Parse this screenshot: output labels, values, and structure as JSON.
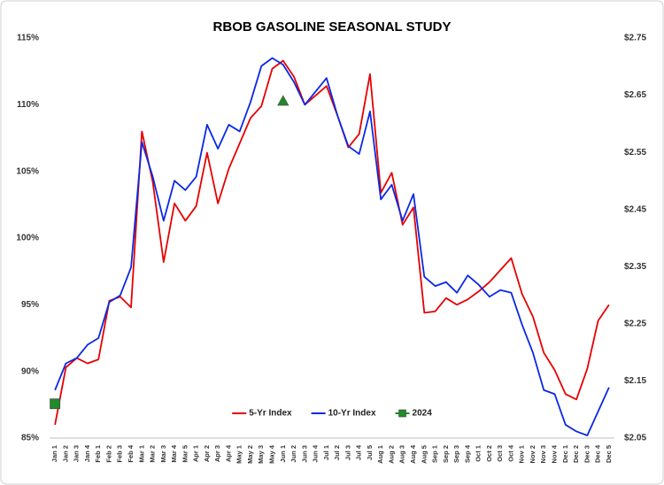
{
  "chart_data": {
    "type": "line",
    "title": "RBOB GASOLINE SEASONAL STUDY",
    "categories": [
      "Jan 1",
      "Jan 2",
      "Jan 3",
      "Jan 4",
      "Feb 1",
      "Feb 2",
      "Feb 3",
      "Feb 4",
      "Mar 1",
      "Mar 2",
      "Mar 3",
      "Mar 4",
      "Mar 5",
      "Apr 1",
      "Apr 2",
      "Apr 3",
      "Apr 4",
      "May 1",
      "May 2",
      "May 3",
      "May 4",
      "Jun 1",
      "Jun 2",
      "Jun 3",
      "Jun 4",
      "Jul 1",
      "Jul 2",
      "Jul 3",
      "Jul 4",
      "Jul 5",
      "Aug 1",
      "Aug 2",
      "Aug 3",
      "Aug 4",
      "Aug 5",
      "Sep 1",
      "Sep 2",
      "Sep 3",
      "Sep 4",
      "Oct 1",
      "Oct 2",
      "Oct 3",
      "Oct 4",
      "Nov 1",
      "Nov 2",
      "Nov 3",
      "Nov 4",
      "Dec 1",
      "Dec 2",
      "Dec 3",
      "Dec 4",
      "Dec 5"
    ],
    "series": [
      {
        "name": "5-Yr Index",
        "color": "#e60000",
        "values": [
          86.0,
          90.3,
          91.0,
          90.6,
          90.9,
          95.3,
          95.6,
          94.8,
          108.0,
          104.2,
          98.2,
          102.6,
          101.3,
          102.4,
          106.4,
          102.6,
          105.2,
          107.1,
          109.0,
          109.9,
          112.7,
          113.3,
          112.1,
          110.0,
          110.7,
          111.4,
          109.2,
          106.8,
          107.8,
          112.3,
          103.4,
          104.9,
          101.0,
          102.3,
          94.4,
          94.5,
          95.5,
          95.0,
          95.4,
          96.0,
          96.7,
          97.6,
          98.5,
          95.8,
          94.1,
          91.4,
          90.1,
          88.3,
          87.9,
          90.2,
          93.8,
          95.0
        ]
      },
      {
        "name": "10-Yr Index",
        "color": "#0a28e6",
        "values": [
          88.6,
          90.6,
          91.0,
          92.0,
          92.5,
          95.2,
          95.7,
          97.8,
          107.2,
          104.6,
          101.3,
          104.3,
          103.6,
          104.6,
          108.5,
          106.7,
          108.5,
          108.0,
          110.2,
          112.9,
          113.5,
          113.0,
          111.7,
          110.0,
          111.0,
          112.0,
          109.2,
          106.9,
          106.3,
          109.5,
          102.9,
          104.0,
          101.3,
          103.3,
          97.1,
          96.4,
          96.7,
          95.9,
          97.2,
          96.5,
          95.6,
          96.1,
          95.9,
          93.5,
          91.4,
          88.6,
          88.3,
          86.0,
          85.5,
          85.2,
          87.0,
          88.8
        ]
      },
      {
        "name": "2024",
        "color": "#1e8c28",
        "axis": "y2",
        "values": [
          2.11,
          null,
          null,
          null,
          null,
          null,
          null,
          null,
          null,
          null,
          null,
          null,
          null,
          null,
          null,
          null,
          null,
          null,
          null,
          null,
          null,
          2.64,
          null,
          null,
          null,
          null,
          null,
          null,
          null,
          null,
          null,
          null,
          null,
          null,
          null,
          null,
          null,
          null,
          null,
          null,
          null,
          null,
          null,
          null,
          null,
          null,
          null,
          null,
          null,
          null,
          null,
          null
        ],
        "markers": [
          "square",
          null,
          null,
          null,
          null,
          null,
          null,
          null,
          null,
          null,
          null,
          null,
          null,
          null,
          null,
          null,
          null,
          null,
          null,
          null,
          null,
          "triangle",
          null,
          null,
          null,
          null,
          null,
          null,
          null,
          null,
          null,
          null,
          null,
          null,
          null,
          null,
          null,
          null,
          null,
          null,
          null,
          null,
          null,
          null,
          null,
          null,
          null,
          null,
          null,
          null,
          null,
          null
        ]
      }
    ],
    "ylim": [
      85,
      115
    ],
    "yticks": [
      {
        "value": 85,
        "label": "85%"
      },
      {
        "value": 90,
        "label": "90%"
      },
      {
        "value": 95,
        "label": "95%"
      },
      {
        "value": 100,
        "label": "100%"
      },
      {
        "value": 105,
        "label": "105%"
      },
      {
        "value": 110,
        "label": "110%"
      },
      {
        "value": 115,
        "label": "115%"
      }
    ],
    "y2lim": [
      2.05,
      2.75
    ],
    "y2ticks": [
      {
        "value": 2.05,
        "label": "$2.05"
      },
      {
        "value": 2.15,
        "label": "$2.15"
      },
      {
        "value": 2.25,
        "label": "$2.25"
      },
      {
        "value": 2.35,
        "label": "$2.35"
      },
      {
        "value": 2.45,
        "label": "$2.45"
      },
      {
        "value": 2.55,
        "label": "$2.55"
      },
      {
        "value": 2.65,
        "label": "$2.65"
      },
      {
        "value": 2.75,
        "label": "$2.75"
      }
    ],
    "grid": false,
    "legend": "bottom"
  }
}
